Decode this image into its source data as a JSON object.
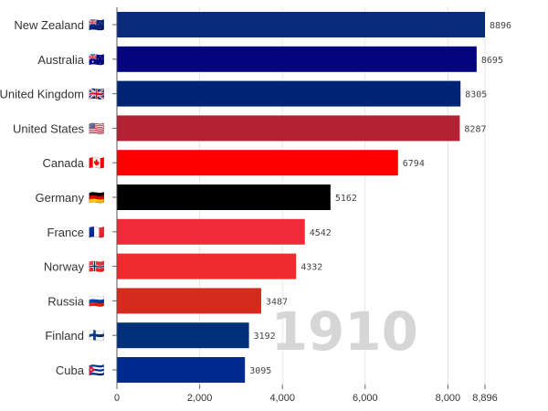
{
  "chart_data": {
    "type": "bar",
    "orientation": "horizontal",
    "categories": [
      "New Zealand",
      "Australia",
      "United Kingdom",
      "United States",
      "Canada",
      "Germany",
      "France",
      "Norway",
      "Russia",
      "Finland",
      "Cuba"
    ],
    "flags": [
      "🇳🇿",
      "🇦🇺",
      "🇬🇧",
      "🇺🇸",
      "🇨🇦",
      "🇩🇪",
      "🇫🇷",
      "🇳🇴",
      "🇷🇺",
      "🇫🇮",
      "🇨🇺"
    ],
    "values": [
      8896,
      8695,
      8305,
      8287,
      6794,
      5162,
      4542,
      4332,
      3487,
      3192,
      3095
    ],
    "value_labels": [
      "8896",
      "8695",
      "8305",
      "8287",
      "6794",
      "5162",
      "4542",
      "4332",
      "3487",
      "3192",
      "3095"
    ],
    "colors": [
      "#0a2a7a",
      "#03047e",
      "#012375",
      "#b22234",
      "#ff0000",
      "#000000",
      "#ef2b3a",
      "#ef2b2d",
      "#d52b1e",
      "#00307a",
      "#002a8f"
    ],
    "xlim": [
      0,
      8896
    ],
    "x_ticks": [
      0,
      2000,
      4000,
      6000,
      8000,
      8896
    ],
    "x_tick_labels": [
      "0",
      "2,000",
      "4,000",
      "6,000",
      "8,000",
      "8,896"
    ],
    "grid": true,
    "year_label": "1910",
    "title": "",
    "xlabel": "",
    "ylabel": ""
  }
}
